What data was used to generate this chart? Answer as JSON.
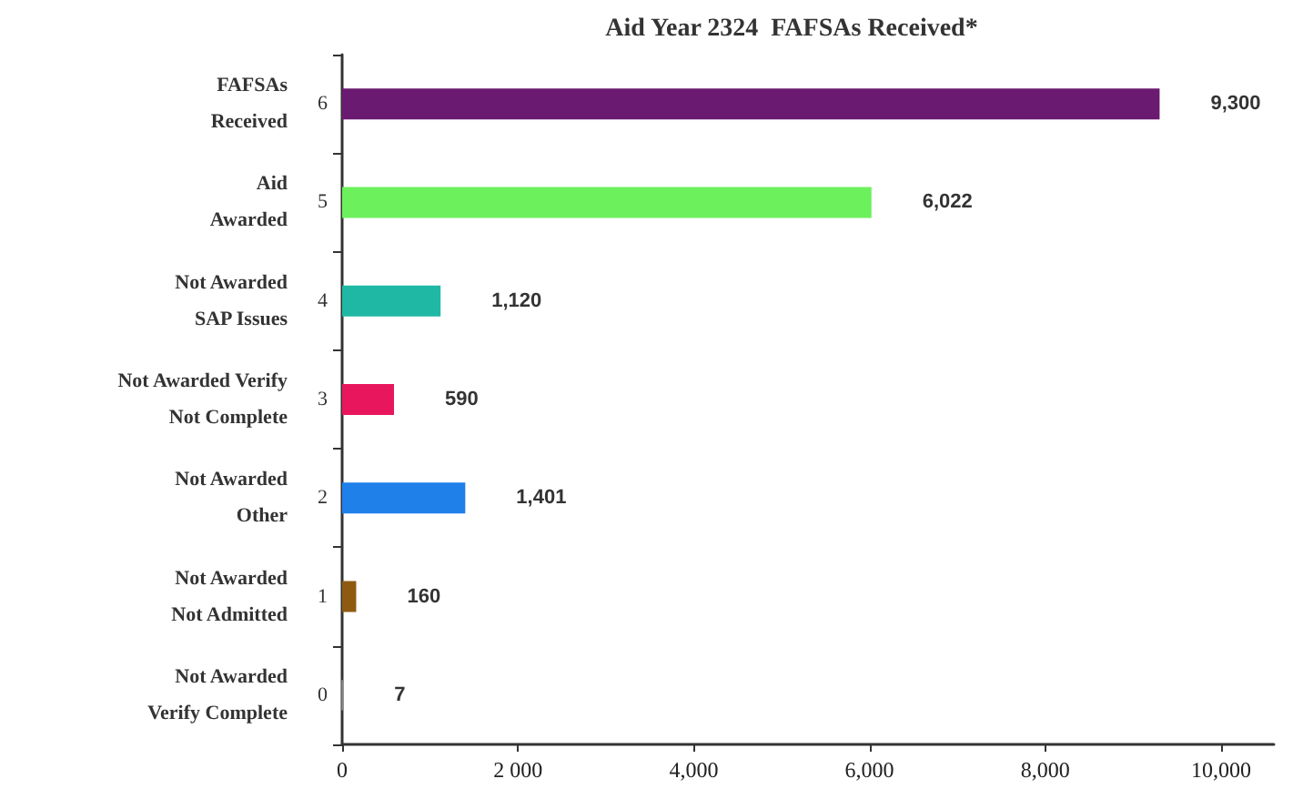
{
  "chart_data": {
    "type": "bar",
    "orientation": "horizontal",
    "title": "Aid Year 2324  FAFSAs Received*",
    "categories": [
      "FAFSAs\nReceived",
      "Aid\nAwarded",
      "Not Awarded\nSAP Issues",
      "Not Awarded Verify\nNot Complete",
      "Not Awarded\nOther",
      "Not Awarded\nNot Admitted",
      "Not Awarded\nVerify Complete"
    ],
    "values": [
      9300,
      6022,
      1120,
      590,
      1401,
      160,
      7
    ],
    "colors": [
      "#6b1a72",
      "#6cf05c",
      "#1fb8a4",
      "#e8175d",
      "#1f80ea",
      "#8e5a12",
      "#8a8a8a"
    ],
    "value_labels": [
      "9,300",
      "6,022",
      "1,120",
      "590",
      "1,401",
      "160",
      "7"
    ],
    "annotations": [
      "6",
      "5",
      "4",
      "3",
      "2",
      "1",
      "0"
    ],
    "xlim": [
      0,
      10600
    ],
    "xticks": [
      0,
      {
        "value": 2000,
        "label": "2 000"
      },
      {
        "value": 4000,
        "label": "4,000"
      },
      {
        "value": 6000,
        "label": "6,000"
      },
      {
        "value": 8000,
        "label": "8,000"
      },
      {
        "value": 10000,
        "label": "10,000"
      }
    ],
    "grid": false
  }
}
